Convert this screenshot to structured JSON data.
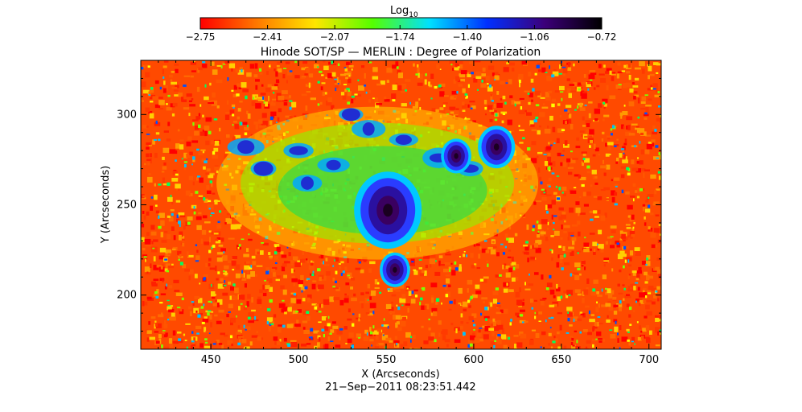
{
  "chart_data": {
    "type": "heatmap",
    "title": "Hinode SOT/SP — MERLIN : Degree of Polarization",
    "xlabel": "X (Arcseconds)",
    "ylabel": "Y (Arcseconds)",
    "footer": "21−Sep−2011 08:23:51.442",
    "xlim": [
      410,
      707
    ],
    "ylim": [
      170,
      330
    ],
    "x_ticks": [
      450,
      500,
      550,
      600,
      650,
      700
    ],
    "y_ticks": [
      200,
      250,
      300
    ],
    "x_tick_labels": [
      "450",
      "500",
      "550",
      "600",
      "650",
      "700"
    ],
    "y_tick_labels": [
      "200",
      "250",
      "300"
    ],
    "colorbar": {
      "label_base": "Log",
      "label_sub": "10",
      "range": [
        -2.75,
        -0.72
      ],
      "ticks": [
        -2.75,
        -2.41,
        -2.07,
        -1.74,
        -1.4,
        -1.06,
        -0.72
      ],
      "tick_labels": [
        "−2.75",
        "−2.41",
        "−2.07",
        "−1.74",
        "−1.40",
        "−1.06",
        "−0.72"
      ],
      "colors": [
        "#ff0000",
        "#ff7a00",
        "#ffe600",
        "#55ff00",
        "#00e0ff",
        "#0030ff",
        "#3c007a",
        "#000000"
      ]
    },
    "features": [
      {
        "name": "main spot",
        "x": 551,
        "y": 247,
        "value": -0.8
      },
      {
        "name": "spot SE",
        "x": 555,
        "y": 214,
        "value": -0.95
      },
      {
        "name": "spot NE",
        "x": 613,
        "y": 282,
        "value": -0.85
      },
      {
        "name": "spot NE2",
        "x": 590,
        "y": 277,
        "value": -1.0
      }
    ]
  }
}
